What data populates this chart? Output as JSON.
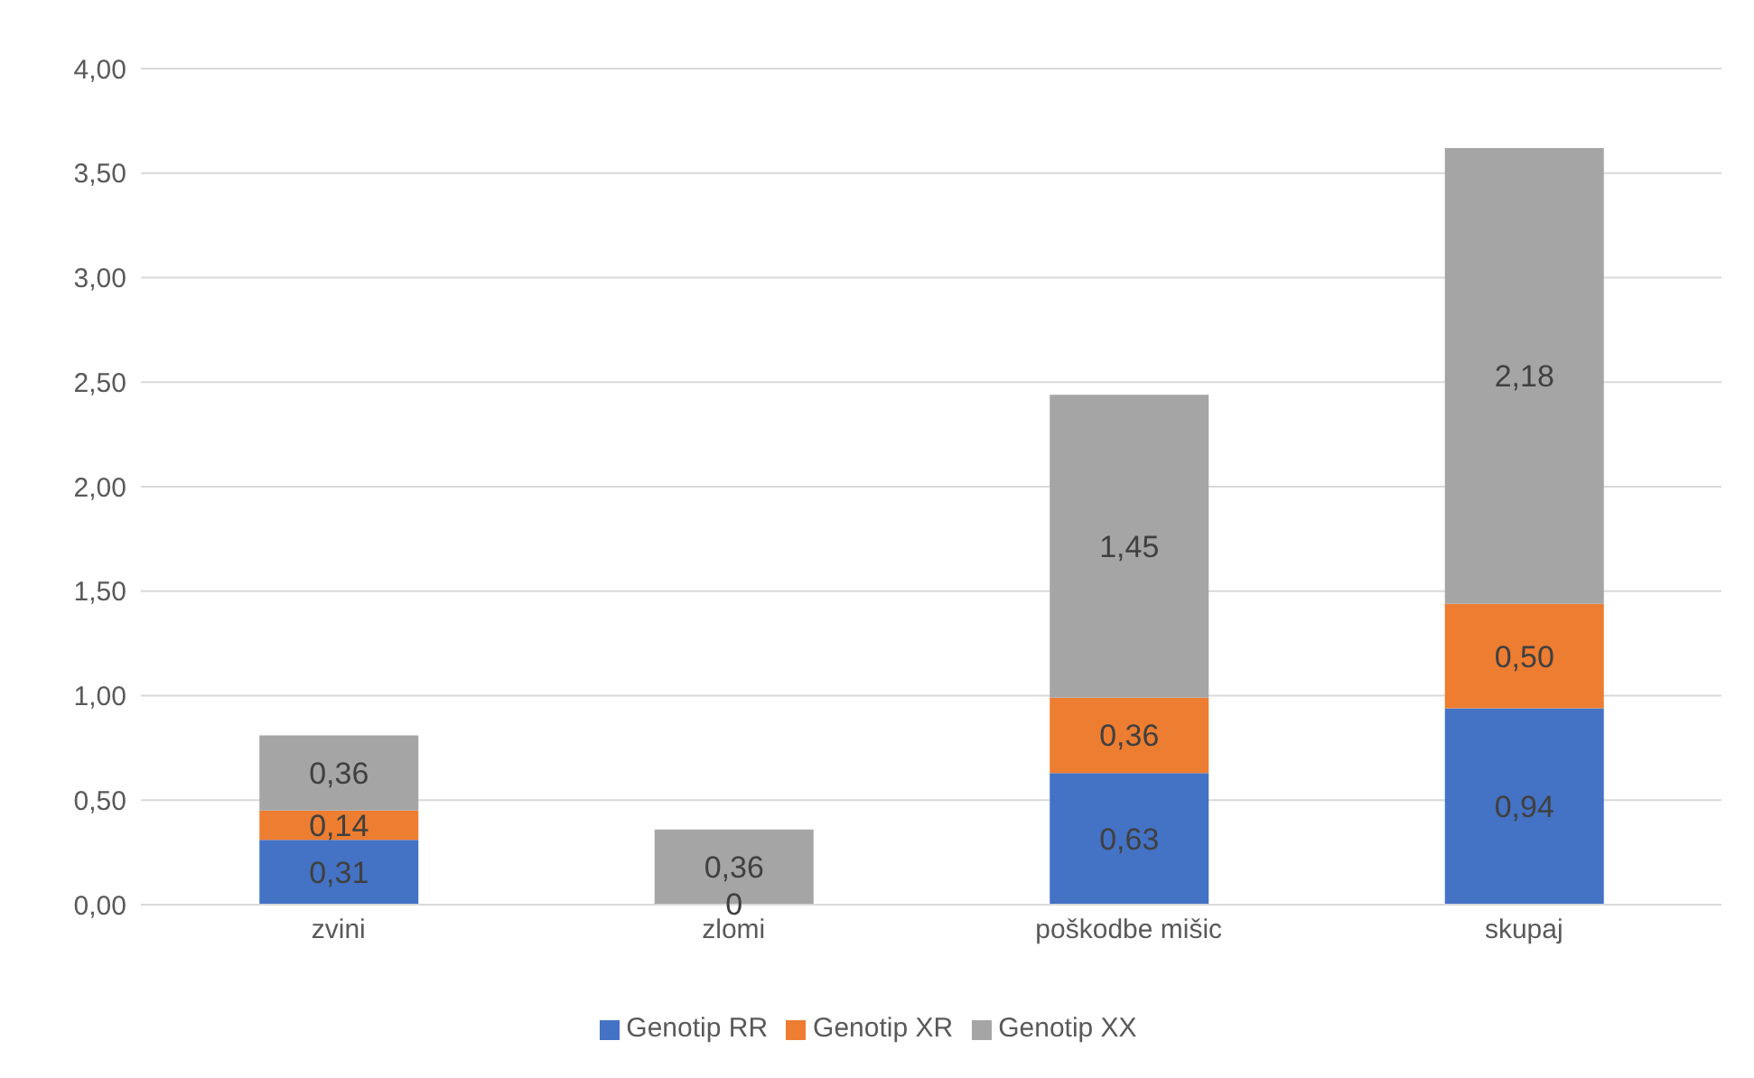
{
  "chart_data": {
    "type": "bar",
    "stacked": true,
    "categories": [
      "zvini",
      "zlomi",
      "poškodbe mišic",
      "skupaj"
    ],
    "series": [
      {
        "name": "Genotip RR",
        "color": "#4472c4",
        "values": [
          0.31,
          0,
          0.63,
          0.94
        ],
        "value_labels": [
          "0,31",
          "0",
          "0,63",
          "0,94"
        ]
      },
      {
        "name": "Genotip XR",
        "color": "#ed7d31",
        "values": [
          0.14,
          0,
          0.36,
          0.5
        ],
        "value_labels": [
          "0,14",
          null,
          "0,36",
          "0,50"
        ]
      },
      {
        "name": "Genotip XX",
        "color": "#a5a5a5",
        "values": [
          0.36,
          0.36,
          1.45,
          2.18
        ],
        "value_labels": [
          "0,36",
          "0,36",
          "1,45",
          "2,18"
        ]
      }
    ],
    "ylim": [
      0,
      4
    ],
    "yticks": [
      {
        "value": 0,
        "label": "0,00"
      },
      {
        "value": 0.5,
        "label": "0,50"
      },
      {
        "value": 1,
        "label": "1,00"
      },
      {
        "value": 1.5,
        "label": "1,50"
      },
      {
        "value": 2,
        "label": "2,00"
      },
      {
        "value": 2.5,
        "label": "2,50"
      },
      {
        "value": 3,
        "label": "3,00"
      },
      {
        "value": 3.5,
        "label": "3,50"
      },
      {
        "value": 4,
        "label": "4,00"
      }
    ],
    "grid": "y",
    "legend": "bottom"
  }
}
